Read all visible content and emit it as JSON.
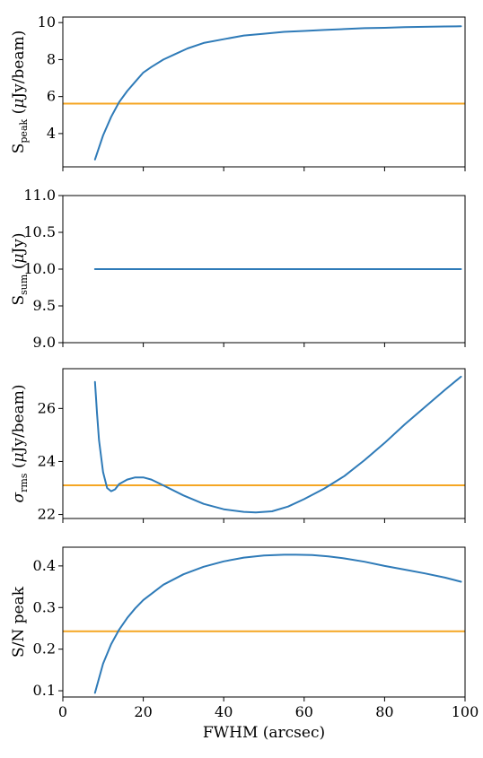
{
  "colors": {
    "series": "#2f7bb8",
    "reference": "#f5a623",
    "axis": "#000000"
  },
  "chart_data": [
    {
      "type": "line",
      "ylabel": {
        "main": "S",
        "sub": "peak",
        "unit_open": "  (",
        "unit_mu": "μ",
        "unit_rest": "Jy/beam)"
      },
      "xlim": [
        0,
        100
      ],
      "ylim": [
        2.2,
        10.3
      ],
      "yticks": [
        4,
        6,
        8,
        10
      ],
      "yticklabels": [
        "4",
        "6",
        "8",
        "10"
      ],
      "show_xticklabels": false,
      "reference_y": 5.62,
      "series": [
        {
          "x": [
            8,
            10,
            12,
            14,
            16,
            18,
            20,
            22,
            25,
            28,
            31,
            35,
            40,
            45,
            50,
            55,
            60,
            65,
            70,
            75,
            80,
            85,
            90,
            95,
            99
          ],
          "y": [
            2.6,
            3.9,
            4.9,
            5.7,
            6.3,
            6.8,
            7.3,
            7.6,
            8.0,
            8.3,
            8.6,
            8.9,
            9.1,
            9.3,
            9.4,
            9.5,
            9.55,
            9.6,
            9.65,
            9.7,
            9.72,
            9.75,
            9.77,
            9.79,
            9.8
          ]
        }
      ]
    },
    {
      "type": "line",
      "ylabel": {
        "main": "S",
        "sub": "sum",
        "unit_open": "  (",
        "unit_mu": "μ",
        "unit_rest": "Jy)"
      },
      "xlim": [
        0,
        100
      ],
      "ylim": [
        9.0,
        11.0
      ],
      "yticks": [
        9.0,
        9.5,
        10.0,
        10.5,
        11.0
      ],
      "yticklabels": [
        "9.0",
        "9.5",
        "10.0",
        "10.5",
        "11.0"
      ],
      "show_xticklabels": false,
      "reference_y": null,
      "series": [
        {
          "x": [
            8,
            99
          ],
          "y": [
            10.0,
            10.0
          ]
        }
      ]
    },
    {
      "type": "line",
      "ylabel": {
        "main": "σ",
        "sub": "rms",
        "unit_open": " (",
        "unit_mu": "μ",
        "unit_rest": "Jy/beam)"
      },
      "xlim": [
        0,
        100
      ],
      "ylim": [
        21.85,
        27.5
      ],
      "yticks": [
        22,
        24,
        26
      ],
      "yticklabels": [
        "22",
        "24",
        "26"
      ],
      "show_xticklabels": false,
      "reference_y": 23.1,
      "series": [
        {
          "x": [
            8,
            8.5,
            9,
            10,
            11,
            12,
            13,
            14,
            16,
            18,
            20,
            22,
            25,
            30,
            35,
            40,
            45,
            48,
            52,
            56,
            60,
            65,
            70,
            75,
            80,
            85,
            90,
            95,
            99
          ],
          "y": [
            27.0,
            25.8,
            24.8,
            23.6,
            23.0,
            22.88,
            22.95,
            23.15,
            23.32,
            23.4,
            23.4,
            23.32,
            23.1,
            22.72,
            22.4,
            22.2,
            22.1,
            22.08,
            22.12,
            22.3,
            22.58,
            22.98,
            23.45,
            24.05,
            24.7,
            25.4,
            26.05,
            26.7,
            27.2
          ]
        }
      ]
    },
    {
      "type": "line",
      "ylabel": {
        "main": "S/N peak"
      },
      "xlabel": "FWHM (arcsec)",
      "xlim": [
        0,
        100
      ],
      "ylim": [
        0.085,
        0.445
      ],
      "yticks": [
        0.1,
        0.2,
        0.3,
        0.4
      ],
      "yticklabels": [
        "0.1",
        "0.2",
        "0.3",
        "0.4"
      ],
      "xticks": [
        0,
        20,
        40,
        60,
        80,
        100
      ],
      "xticklabels": [
        "0",
        "20",
        "40",
        "60",
        "80",
        "100"
      ],
      "show_xticklabels": true,
      "reference_y": 0.243,
      "series": [
        {
          "x": [
            8,
            10,
            12,
            14,
            16,
            18,
            20,
            25,
            30,
            35,
            40,
            45,
            50,
            55,
            58,
            62,
            66,
            70,
            75,
            80,
            85,
            90,
            95,
            99
          ],
          "y": [
            0.095,
            0.165,
            0.212,
            0.247,
            0.275,
            0.298,
            0.318,
            0.355,
            0.38,
            0.398,
            0.411,
            0.42,
            0.425,
            0.427,
            0.427,
            0.426,
            0.423,
            0.418,
            0.41,
            0.4,
            0.391,
            0.382,
            0.372,
            0.362
          ]
        }
      ]
    }
  ]
}
